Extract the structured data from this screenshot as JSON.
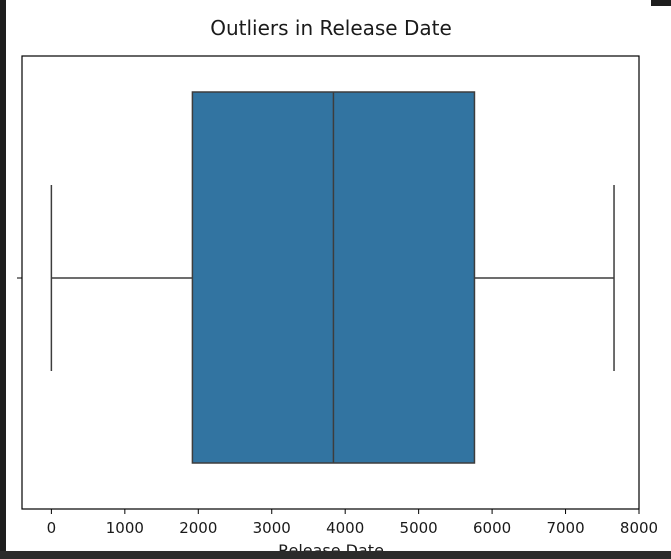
{
  "chart_data": {
    "type": "box",
    "title": "Outliers in Release Date",
    "xlabel": "Release Date",
    "ylabel": "",
    "xlim": [
      -400,
      8000
    ],
    "xticks": [
      0,
      1000,
      2000,
      3000,
      4000,
      5000,
      6000,
      7000,
      8000
    ],
    "series": [
      {
        "whisker_low": 0,
        "q1": 1920,
        "median": 3840,
        "q3": 5760,
        "whisker_high": 7660
      }
    ],
    "box_color": "#3274a1",
    "line_color": "#3d3d3d"
  }
}
